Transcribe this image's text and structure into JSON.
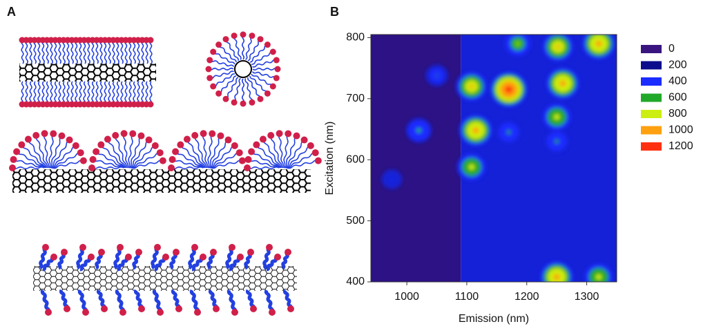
{
  "panel_labels": [
    "A",
    "B"
  ],
  "chart_data": {
    "type": "heatmap",
    "x_label": "Emission (nm)",
    "y_label": "Excitation (nm)",
    "xlim": [
      940,
      1350
    ],
    "ylim": [
      400,
      805
    ],
    "xticks": [
      1000,
      1100,
      1200,
      1300
    ],
    "yticks": [
      400,
      500,
      600,
      700,
      800
    ],
    "background": {
      "x0": [
        940,
        1090
      ],
      "x1": [
        1090,
        1350
      ],
      "values": [
        60,
        330
      ]
    },
    "spots": {
      "x": [
        1170,
        1115,
        1108,
        1108,
        1252,
        1320,
        1260,
        1250,
        1250,
        1320,
        1185,
        1020,
        1050,
        975,
        1170,
        1250
      ],
      "y": [
        715,
        648,
        720,
        588,
        785,
        790,
        725,
        670,
        408,
        408,
        790,
        648,
        738,
        568,
        645,
        630
      ],
      "values": [
        1200,
        1000,
        900,
        800,
        900,
        1000,
        1000,
        800,
        1000,
        800,
        700,
        600,
        450,
        350,
        550,
        550
      ]
    },
    "legend": {
      "levels": [
        0,
        200,
        400,
        600,
        800,
        1000,
        1200
      ],
      "colors": [
        "#3a1580",
        "#0c0c8c",
        "#1a2cff",
        "#22a828",
        "#ccee10",
        "#ffa010",
        "#ff3010"
      ]
    }
  }
}
